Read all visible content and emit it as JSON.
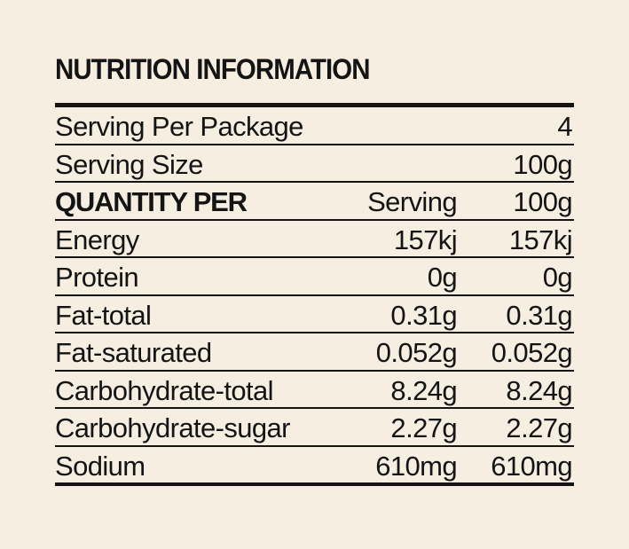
{
  "title": "NUTRITION INFORMATION",
  "rows": [
    {
      "label": "Serving Per Package",
      "serving": "",
      "per100": "4"
    },
    {
      "label": "Serving Size",
      "serving": "",
      "per100": "100g"
    },
    {
      "label": "QUANTITY PER",
      "serving": "Serving",
      "per100": "100g"
    },
    {
      "label": "Energy",
      "serving": "157kj",
      "per100": "157kj"
    },
    {
      "label": "Protein",
      "serving": "0g",
      "per100": "0g"
    },
    {
      "label": "Fat-total",
      "serving": "0.31g",
      "per100": "0.31g"
    },
    {
      "label": "Fat-saturated",
      "serving": "0.052g",
      "per100": "0.052g"
    },
    {
      "label": "Carbohydrate-total",
      "serving": "8.24g",
      "per100": "8.24g"
    },
    {
      "label": "Carbohydrate-sugar",
      "serving": "2.27g",
      "per100": "2.27g"
    },
    {
      "label": "Sodium",
      "serving": "610mg",
      "per100": "610mg"
    }
  ],
  "colors": {
    "background": "#f6eee0",
    "ink": "#141414"
  }
}
